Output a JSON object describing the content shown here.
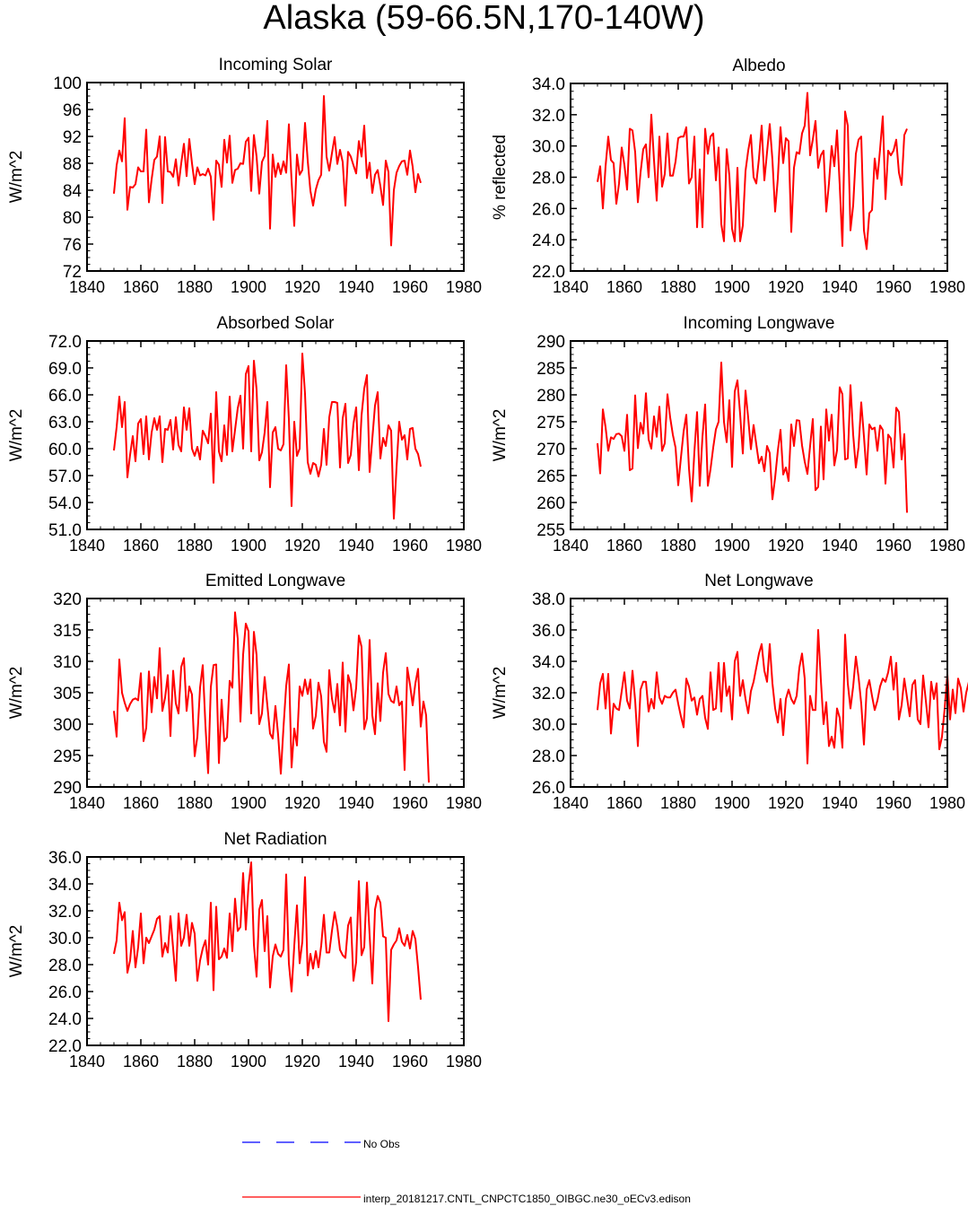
{
  "title": "Alaska (59-66.5N,170-140W)",
  "legend": {
    "no_obs": "No Obs",
    "no_obs_color": "#0000ff",
    "model": "interp_20181217.CNTL_CNPCTC1850_OIBGC.ne30_oECv3.edison",
    "model_color": "#ff0000"
  },
  "chart_data": [
    {
      "type": "line",
      "title": "Incoming Solar",
      "ylabel": "W/m^2",
      "xlim": [
        1840,
        1980
      ],
      "ylim": [
        72,
        100
      ],
      "yticks": [
        "72",
        "76",
        "80",
        "84",
        "88",
        "92",
        "96",
        "100"
      ],
      "xticks": [
        "1840",
        "1860",
        "1880",
        "1900",
        "1920",
        "1940",
        "1960",
        "1980"
      ],
      "x_start": 1850,
      "series": [
        {
          "color": "#ff0000",
          "values": [
            83.5,
            87.7,
            89.9,
            88.3,
            94.7,
            81.1,
            84.5,
            84.4,
            84.9,
            87.4,
            86.8,
            86.8,
            93.0,
            82.2,
            85.6,
            88.5,
            89.0,
            92.0,
            82.1,
            91.9,
            86.8,
            86.7,
            86.0,
            88.6,
            84.7,
            88.0,
            90.9,
            86.1,
            91.6,
            88.0,
            84.9,
            87.4,
            86.2,
            86.4,
            86.2,
            87.2,
            86.0,
            79.6,
            88.4,
            87.8,
            84.5,
            91.5,
            88.1,
            92.1,
            85.1,
            87.0,
            87.2,
            88.0,
            87.9,
            91.2,
            91.8,
            83.9,
            92.2,
            89.0,
            83.5,
            88.2,
            89.1,
            94.3,
            78.3,
            89.3,
            86.0,
            88.0,
            86.4,
            88.3,
            86.6,
            93.8,
            85.4,
            78.7,
            89.3,
            86.3,
            87.0,
            94.0,
            88.4,
            83.9,
            81.7,
            84.1,
            85.5,
            86.3,
            98.0,
            89.0,
            86.9,
            89.5,
            91.9,
            87.9,
            90.0,
            88.2,
            81.7,
            89.7,
            89.0,
            87.7,
            86.5,
            91.3,
            89.0,
            93.6,
            85.8,
            88.1,
            83.6,
            86.3,
            87.0,
            84.6,
            81.8,
            88.4,
            86.7,
            75.8,
            84.0,
            86.6,
            87.6,
            88.3,
            88.4,
            86.3,
            89.9,
            87.5,
            83.7,
            86.4,
            85.1
          ]
        }
      ]
    },
    {
      "type": "line",
      "title": "Albedo",
      "ylabel": "% reflected",
      "xlim": [
        1840,
        1980
      ],
      "ylim": [
        22,
        34
      ],
      "yticks": [
        "22.0",
        "24.0",
        "26.0",
        "28.0",
        "30.0",
        "32.0",
        "34.0"
      ],
      "xticks": [
        "1840",
        "1860",
        "1880",
        "1900",
        "1920",
        "1940",
        "1960",
        "1980"
      ],
      "x_start": 1850,
      "series": [
        {
          "color": "#ff0000",
          "values": [
            27.7,
            28.7,
            26.0,
            28.7,
            30.6,
            29.1,
            28.9,
            26.3,
            27.6,
            29.9,
            28.8,
            27.2,
            31.1,
            31.0,
            29.6,
            26.4,
            28.3,
            29.8,
            30.1,
            28.0,
            32.0,
            29.1,
            26.5,
            30.6,
            27.4,
            28.2,
            30.8,
            28.1,
            28.1,
            29.0,
            30.5,
            30.6,
            30.6,
            31.2,
            27.6,
            28.0,
            30.6,
            24.8,
            28.5,
            24.8,
            31.1,
            29.5,
            30.6,
            30.8,
            27.8,
            29.9,
            25.0,
            23.9,
            29.8,
            28.1,
            24.7,
            23.9,
            28.6,
            23.9,
            24.9,
            28.4,
            29.7,
            30.7,
            28.0,
            27.6,
            29.2,
            31.3,
            27.8,
            29.6,
            31.4,
            29.1,
            25.8,
            27.9,
            31.2,
            28.9,
            30.5,
            30.3,
            24.5,
            28.6,
            29.6,
            29.5,
            30.8,
            31.3,
            33.4,
            29.4,
            30.4,
            31.6,
            28.6,
            29.4,
            29.7,
            25.8,
            27.6,
            30.0,
            28.7,
            31.0,
            27.5,
            23.6,
            32.2,
            31.3,
            24.6,
            26.2,
            29.5,
            30.4,
            30.6,
            24.6,
            23.4,
            25.7,
            25.9,
            29.2,
            27.9,
            29.8,
            31.9,
            26.6,
            29.7,
            29.4,
            29.7,
            30.4,
            28.3,
            27.5,
            30.7,
            31.1
          ]
        }
      ]
    },
    {
      "type": "line",
      "title": "Absorbed Solar",
      "ylabel": "W/m^2",
      "xlim": [
        1840,
        1980
      ],
      "ylim": [
        51,
        72
      ],
      "yticks": [
        "51.0",
        "54.0",
        "57.0",
        "60.0",
        "63.0",
        "66.0",
        "69.0",
        "72.0"
      ],
      "xticks": [
        "1840",
        "1860",
        "1880",
        "1900",
        "1920",
        "1940",
        "1960",
        "1980"
      ],
      "x_start": 1850,
      "series": [
        {
          "color": "#ff0000",
          "values": [
            59.8,
            62.4,
            65.8,
            62.4,
            65.2,
            56.8,
            59.3,
            61.4,
            58.6,
            62.8,
            63.3,
            59.4,
            63.6,
            58.8,
            61.8,
            63.4,
            62.1,
            63.6,
            58.5,
            62.2,
            62.1,
            63.2,
            59.9,
            63.5,
            60.4,
            59.7,
            64.6,
            62.1,
            64.5,
            60.0,
            59.2,
            60.2,
            58.8,
            62.0,
            61.4,
            60.6,
            63.9,
            56.2,
            66.3,
            59.7,
            58.6,
            62.6,
            59.3,
            65.8,
            59.7,
            62.1,
            64.5,
            65.9,
            60.0,
            68.3,
            69.2,
            59.7,
            69.8,
            66.6,
            58.7,
            59.6,
            61.8,
            65.2,
            55.7,
            61.8,
            62.4,
            60.0,
            59.8,
            60.5,
            69.3,
            63.3,
            53.6,
            63.0,
            59.2,
            60.0,
            70.6,
            66.1,
            58.5,
            57.2,
            58.4,
            58.2,
            56.9,
            58.2,
            62.2,
            58.2,
            63.5,
            65.2,
            65.2,
            65.1,
            57.9,
            63.4,
            65.0,
            58.4,
            59.3,
            62.8,
            64.6,
            57.6,
            63.7,
            66.7,
            68.2,
            57.4,
            61.1,
            64.8,
            66.3,
            58.9,
            61.2,
            60.3,
            62.6,
            62.0,
            52.2,
            57.9,
            63.0,
            61.0,
            61.5,
            58.8,
            62.2,
            62.3,
            60.0,
            59.4,
            58.0
          ]
        }
      ]
    },
    {
      "type": "line",
      "title": "Incoming Longwave",
      "ylabel": "W/m^2",
      "xlim": [
        1840,
        1980
      ],
      "ylim": [
        255,
        290
      ],
      "yticks": [
        "255",
        "260",
        "265",
        "270",
        "275",
        "280",
        "285",
        "290"
      ],
      "xticks": [
        "1840",
        "1860",
        "1880",
        "1900",
        "1920",
        "1940",
        "1960",
        "1980"
      ],
      "x_start": 1850,
      "series": [
        {
          "color": "#ff0000",
          "values": [
            271.0,
            265.4,
            277.3,
            274.0,
            269.6,
            272.1,
            271.8,
            272.7,
            272.8,
            272.3,
            269.6,
            276.3,
            266.0,
            266.3,
            279.9,
            270.1,
            274.8,
            272.8,
            280.3,
            271.7,
            270.0,
            276.0,
            272.2,
            277.8,
            269.6,
            271.0,
            280.1,
            275.8,
            272.6,
            270.2,
            263.2,
            268.3,
            273.2,
            276.3,
            266.3,
            260.2,
            269.4,
            276.8,
            263.1,
            272.2,
            278.2,
            263.1,
            266.2,
            270.2,
            273.6,
            275.0,
            286.0,
            275.0,
            271.2,
            279.0,
            266.6,
            280.6,
            282.7,
            276.4,
            269.1,
            280.8,
            275.7,
            269.9,
            274.4,
            270.8,
            267.3,
            268.5,
            265.8,
            270.5,
            269.2,
            260.6,
            264.6,
            269.6,
            273.5,
            265.2,
            266.5,
            264.0,
            274.5,
            270.5,
            275.3,
            275.2,
            270.6,
            267.6,
            265.3,
            270.5,
            275.5,
            262.3,
            262.9,
            274.1,
            264.3,
            277.3,
            271.5,
            276.3,
            266.9,
            269.7,
            281.4,
            280.1,
            268.0,
            268.2,
            281.8,
            272.6,
            266.5,
            270.3,
            278.6,
            272.3,
            265.2,
            274.5,
            273.6,
            273.9,
            269.6,
            274.3,
            273.5,
            263.5,
            272.6,
            271.9,
            266.5,
            277.6,
            276.8,
            268.0,
            272.7,
            258.1
          ]
        }
      ]
    },
    {
      "type": "line",
      "title": "Emitted Longwave",
      "ylabel": "W/m^2",
      "xlim": [
        1840,
        1980
      ],
      "ylim": [
        290,
        320
      ],
      "yticks": [
        "290",
        "295",
        "300",
        "305",
        "310",
        "315",
        "320"
      ],
      "xticks": [
        "1840",
        "1860",
        "1880",
        "1900",
        "1920",
        "1940",
        "1960",
        "1980"
      ],
      "x_start": 1850,
      "series": [
        {
          "color": "#ff0000",
          "values": [
            302.1,
            298.0,
            310.3,
            305.0,
            303.4,
            302.1,
            303.2,
            303.9,
            304.1,
            303.8,
            308.1,
            297.3,
            299.4,
            308.4,
            301.9,
            307.5,
            304.1,
            312.1,
            302.1,
            304.2,
            307.8,
            298.1,
            308.5,
            303.3,
            301.7,
            309.1,
            310.5,
            302.1,
            306.0,
            304.7,
            294.9,
            298.0,
            305.8,
            309.4,
            299.8,
            292.2,
            305.9,
            309.4,
            309.5,
            293.8,
            303.9,
            297.3,
            297.9,
            306.9,
            305.8,
            317.8,
            313.6,
            300.4,
            311.1,
            316.0,
            314.8,
            301.7,
            314.7,
            311.0,
            300.0,
            301.7,
            307.5,
            303.0,
            298.5,
            297.7,
            302.9,
            298.3,
            292.1,
            299.5,
            306.1,
            309.5,
            293.1,
            299.3,
            296.6,
            306.0,
            304.5,
            307.1,
            304.8,
            307.1,
            299.3,
            301.3,
            306.6,
            304.4,
            297.2,
            295.6,
            308.6,
            304.1,
            301.9,
            306.4,
            299.8,
            309.8,
            298.8,
            307.8,
            306.3,
            302.2,
            305.8,
            314.1,
            312.3,
            299.2,
            300.9,
            313.4,
            301.4,
            298.4,
            306.5,
            300.5,
            308.2,
            311.3,
            304.8,
            303.7,
            303.4,
            306.0,
            303.0,
            303.6,
            292.7,
            309.0,
            306.3,
            303.0,
            306.5,
            308.8,
            299.6,
            303.6,
            301.4,
            290.7
          ]
        }
      ]
    },
    {
      "type": "line",
      "title": "Net Longwave",
      "ylabel": "W/m^2",
      "xlim": [
        1840,
        1980
      ],
      "ylim": [
        26,
        38
      ],
      "yticks": [
        "26.0",
        "28.0",
        "30.0",
        "32.0",
        "34.0",
        "36.0",
        "38.0"
      ],
      "xticks": [
        "1840",
        "1860",
        "1880",
        "1900",
        "1920",
        "1940",
        "1960",
        "1980"
      ],
      "x_start": 1850,
      "series": [
        {
          "color": "#ff0000",
          "values": [
            30.9,
            32.6,
            33.2,
            31.0,
            33.2,
            29.4,
            31.3,
            31.0,
            30.9,
            32.1,
            33.3,
            31.5,
            31.0,
            33.4,
            31.5,
            28.6,
            32.2,
            32.7,
            32.7,
            30.8,
            31.6,
            31.0,
            33.3,
            31.7,
            31.3,
            31.8,
            31.7,
            31.7,
            32.0,
            32.2,
            31.3,
            30.5,
            29.8,
            32.9,
            32.4,
            31.5,
            31.7,
            30.6,
            31.6,
            31.8,
            30.4,
            29.7,
            33.3,
            30.9,
            31.0,
            33.9,
            30.8,
            33.9,
            31.8,
            32.4,
            30.3,
            34.0,
            34.6,
            31.8,
            32.8,
            31.6,
            30.7,
            32.1,
            32.7,
            33.6,
            34.5,
            35.1,
            33.4,
            32.7,
            35.1,
            32.6,
            31.0,
            30.1,
            31.6,
            29.3,
            31.6,
            32.2,
            31.6,
            31.3,
            31.8,
            33.6,
            34.5,
            32.9,
            27.5,
            31.8,
            30.9,
            30.9,
            36.0,
            32.8,
            30.0,
            31.4,
            28.6,
            29.2,
            28.5,
            31.0,
            30.4,
            28.5,
            35.7,
            32.6,
            31.0,
            32.4,
            34.3,
            33.0,
            31.3,
            28.7,
            32.2,
            32.8,
            31.8,
            30.9,
            31.5,
            32.4,
            32.9,
            32.7,
            33.3,
            34.3,
            32.2,
            33.9,
            30.3,
            31.2,
            32.9,
            31.7,
            30.5,
            32.5,
            32.8,
            30.3,
            30.0,
            33.1,
            31.5,
            29.8,
            32.7,
            31.6,
            32.6,
            28.4,
            29.2,
            31.0,
            33.2,
            30.3,
            32.2,
            30.7,
            32.9,
            32.3,
            30.8,
            32.0,
            32.7
          ]
        }
      ]
    },
    {
      "type": "line",
      "title": "Net Radiation",
      "ylabel": "W/m^2",
      "xlim": [
        1840,
        1980
      ],
      "ylim": [
        22,
        36
      ],
      "yticks": [
        "22.0",
        "24.0",
        "26.0",
        "28.0",
        "30.0",
        "32.0",
        "34.0",
        "36.0"
      ],
      "xticks": [
        "1840",
        "1860",
        "1880",
        "1900",
        "1920",
        "1940",
        "1960",
        "1980"
      ],
      "x_start": 1850,
      "series": [
        {
          "color": "#ff0000",
          "values": [
            28.8,
            29.8,
            32.6,
            31.3,
            31.9,
            27.4,
            28.3,
            30.5,
            27.8,
            29.3,
            31.8,
            28.1,
            30.0,
            29.6,
            30.1,
            30.6,
            31.4,
            31.6,
            28.6,
            29.6,
            28.9,
            31.6,
            29.2,
            26.8,
            31.8,
            29.4,
            30.0,
            31.7,
            29.4,
            31.1,
            30.3,
            26.8,
            28.3,
            29.2,
            29.8,
            28.0,
            32.6,
            26.1,
            32.3,
            28.4,
            28.6,
            29.2,
            28.5,
            31.8,
            29.0,
            32.9,
            30.5,
            30.8,
            34.8,
            30.6,
            33.9,
            35.6,
            29.5,
            27.1,
            32.1,
            32.8,
            29.0,
            31.6,
            26.3,
            28.6,
            29.5,
            28.8,
            28.6,
            29.1,
            34.7,
            28.1,
            26.0,
            29.4,
            32.4,
            28.1,
            29.7,
            34.5,
            27.2,
            28.8,
            27.7,
            29.0,
            27.8,
            29.4,
            31.7,
            28.9,
            28.9,
            30.5,
            31.9,
            30.8,
            29.1,
            28.7,
            28.5,
            30.9,
            31.5,
            26.8,
            28.2,
            34.2,
            28.7,
            29.3,
            34.1,
            30.2,
            26.6,
            32.1,
            33.1,
            32.6,
            30.1,
            30.0,
            23.8,
            29.1,
            29.5,
            29.8,
            30.7,
            29.7,
            29.4,
            30.2,
            29.2,
            30.5,
            29.9,
            27.8,
            25.4
          ]
        }
      ]
    }
  ]
}
